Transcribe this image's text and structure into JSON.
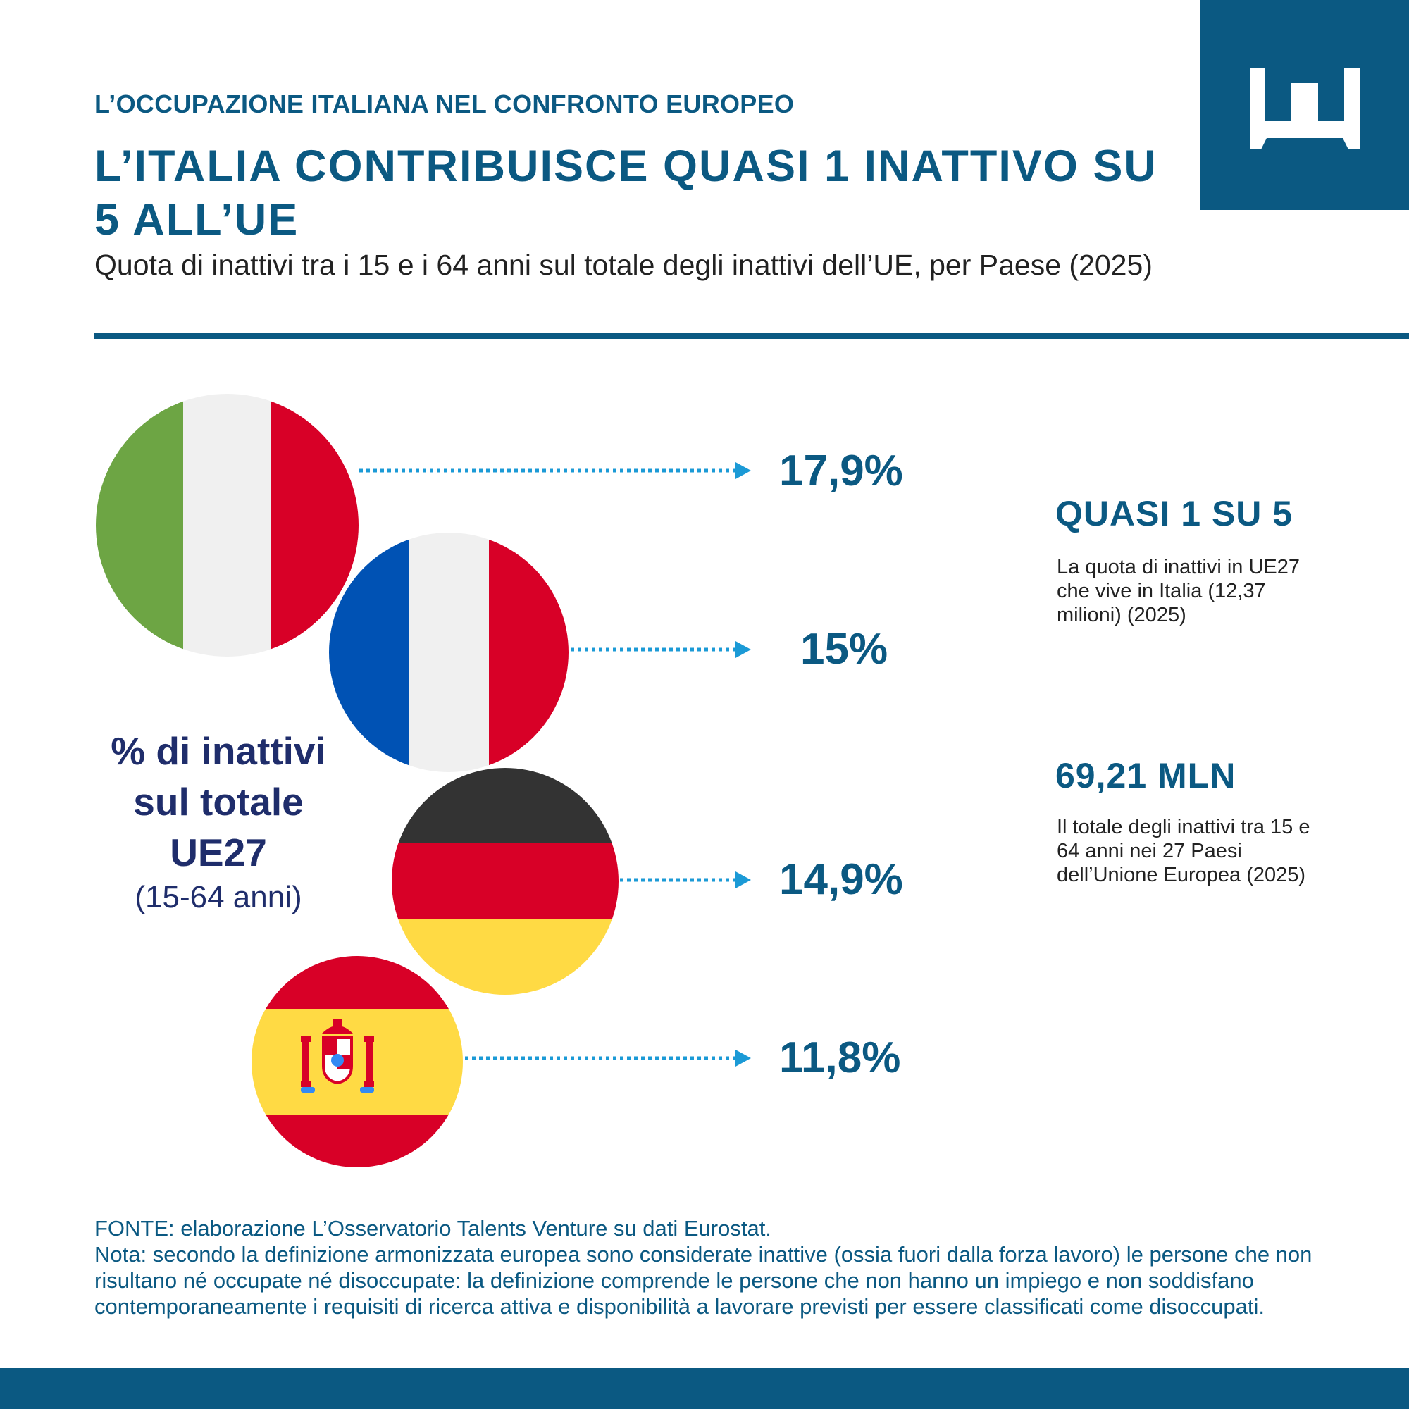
{
  "header": {
    "kicker": "L’OCCUPAZIONE ITALIANA NEL CONFRONTO EUROPEO",
    "title": "L’ITALIA CONTRIBUISCE QUASI 1 INATTIVO SU 5 ALL’UE",
    "subtitle": "Quota di inattivi tra i 15 e i 64 anni sul totale degli inattivi dell’UE, per Paese (2025)"
  },
  "left_label": {
    "line1": "% di inattivi",
    "line2": "sul totale",
    "line3": "UE27",
    "line4": "(15-64 anni)"
  },
  "chart_data": {
    "type": "table",
    "title": "",
    "unit": "%",
    "rows": [
      {
        "country_flag": "Italy",
        "value": 17.9,
        "label": "17,9%"
      },
      {
        "country_flag": "France",
        "value": 15.0,
        "label": "15%"
      },
      {
        "country_flag": "Germany",
        "value": 14.9,
        "label": "14,9%"
      },
      {
        "country_flag": "Spain",
        "value": 11.8,
        "label": "11,8%"
      }
    ]
  },
  "stats": [
    {
      "headline": "QUASI 1 SU 5",
      "text": "La quota di inattivi in UE27 che vive in Italia (12,37 milioni) (2025)"
    },
    {
      "headline": "69,21 MLN",
      "text": "Il totale degli inattivi tra 15 e 64 anni nei 27 Paesi dell’Unione Europea (2025)"
    }
  ],
  "source": {
    "line1": "FONTE: elaborazione L’Osservatorio Talents Venture su dati Eurostat.",
    "note": "Nota: secondo la definizione armonizzata europea sono considerate inattive (ossia fuori dalla forza lavoro) le persone che non risultano né occupate né disoccupate: la definizione comprende le persone che non hanno un impiego e non soddisfano contemporaneamente i requisiti di ricerca attiva e disponibilità a lavorare previsti per essere classificati come disoccupati."
  },
  "colors": {
    "brand": "#0b5982",
    "arrow": "#1b9ad6",
    "label_navy": "#1f2d6b"
  },
  "icons": [
    "logo-crown-icon",
    "flag-italy-icon",
    "flag-france-icon",
    "flag-germany-icon",
    "flag-spain-icon",
    "arrow-right-icon"
  ]
}
